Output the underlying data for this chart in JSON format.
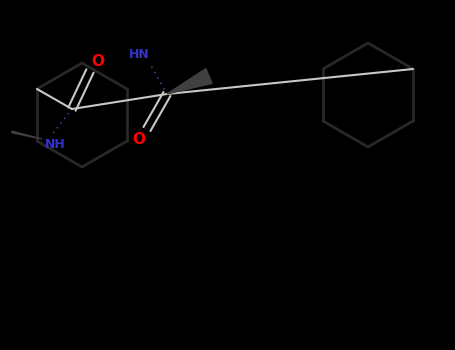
{
  "background_color": "#000000",
  "bond_color": "#c8c8c8",
  "ring_color": "#282828",
  "atom_colors": {
    "O": "#ff0000",
    "N": "#3333cc",
    "C": "#c8c8c8",
    "H": "#c8c8c8"
  },
  "figsize": [
    4.55,
    3.5
  ],
  "dpi": 100,
  "wedge_color": "#404040",
  "wedge_dark": "#383838"
}
